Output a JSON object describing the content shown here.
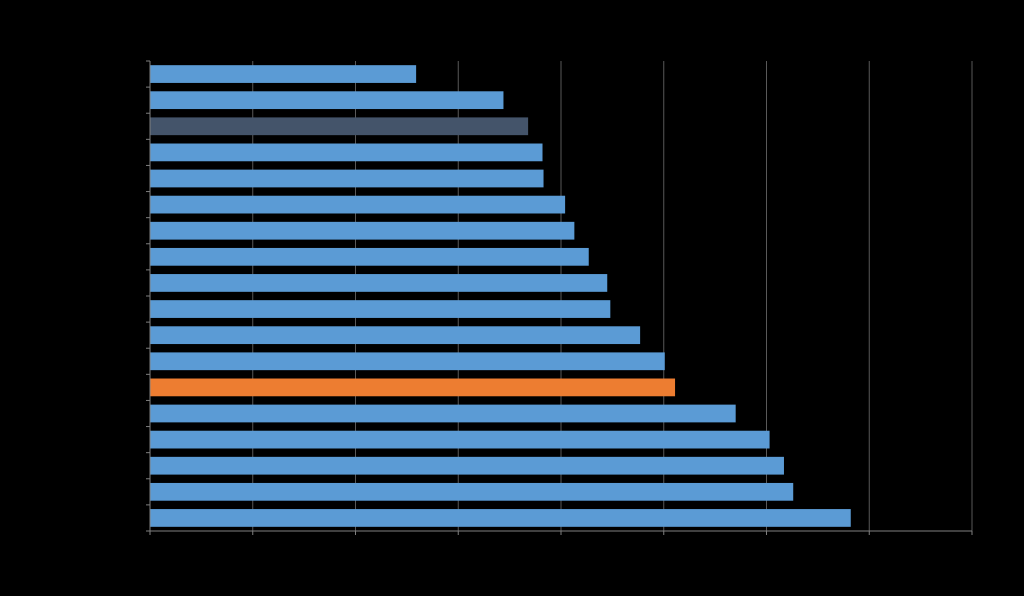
{
  "chart_data": {
    "type": "bar",
    "orientation": "horizontal",
    "title": "",
    "xlabel": "",
    "ylabel": "",
    "xlim": [
      0,
      8
    ],
    "grid": "vertical",
    "values": [
      2.59,
      3.44,
      3.68,
      3.82,
      3.83,
      4.04,
      4.13,
      4.27,
      4.45,
      4.48,
      4.77,
      5.01,
      5.11,
      5.7,
      6.03,
      6.17,
      6.26,
      6.82
    ],
    "bar_colors": [
      "#5b9bd5",
      "#5b9bd5",
      "#44546a",
      "#5b9bd5",
      "#5b9bd5",
      "#5b9bd5",
      "#5b9bd5",
      "#5b9bd5",
      "#5b9bd5",
      "#5b9bd5",
      "#5b9bd5",
      "#5b9bd5",
      "#ed7d31",
      "#5b9bd5",
      "#5b9bd5",
      "#5b9bd5",
      "#5b9bd5",
      "#5b9bd5"
    ],
    "colors": {
      "background": "#000000",
      "grid": "#595959",
      "axis": "#7f7f7f"
    }
  }
}
